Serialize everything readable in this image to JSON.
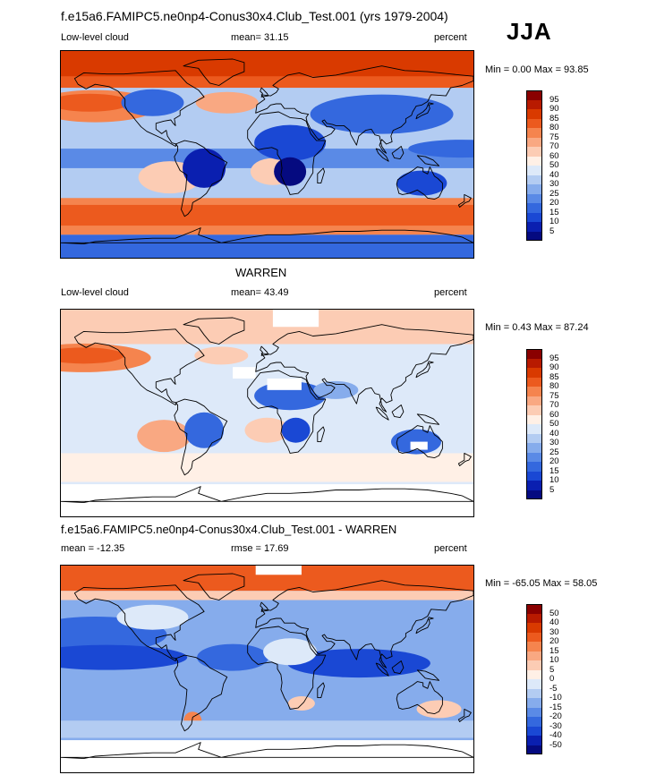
{
  "page": {
    "main_title": "f.e15a6.FAMIPC5.ne0np4-Conus30x4.Club_Test.001 (yrs 1979-2004)",
    "season": "JJA"
  },
  "panels": [
    {
      "id": "model",
      "title": "",
      "left_label": "Low-level cloud",
      "center_label": "mean=  31.15",
      "right_label": "percent",
      "minmax": "Min =    0.00 Max =  93.85"
    },
    {
      "id": "obs",
      "title": "WARREN",
      "left_label": "Low-level cloud",
      "center_label": "mean=  43.49",
      "right_label": "percent",
      "minmax": "Min =   0.43 Max =  87.24"
    },
    {
      "id": "diff",
      "title": "f.e15a6.FAMIPC5.ne0np4-Conus30x4.Club_Test.001 - WARREN",
      "left_label": "mean = -12.35",
      "center_label": "rmse =  17.69",
      "right_label": "percent",
      "minmax": "Min = -65.05 Max =  58.05"
    }
  ],
  "chart_data": [
    {
      "type": "heatmap",
      "title": "Low-level cloud",
      "units": "percent",
      "projection": "cylindrical equidistant, 0E centre",
      "stats": {
        "mean": 31.15,
        "min": 0.0,
        "max": 93.85
      },
      "colorbar_levels": [
        "95",
        "90",
        "85",
        "80",
        "75",
        "70",
        "60",
        "50",
        "40",
        "30",
        "25",
        "20",
        "15",
        "10",
        "5"
      ],
      "colorbar_colors": [
        "#8a0000",
        "#b81a00",
        "#d93a00",
        "#ec5a1e",
        "#f5844e",
        "#f9a882",
        "#fcccb4",
        "#fff0e6",
        "#dde9f9",
        "#b3ccf2",
        "#86acec",
        "#5a8ae6",
        "#3468de",
        "#1a48d4",
        "#0a1fb0",
        "#050a80"
      ]
    },
    {
      "type": "heatmap",
      "title": "WARREN",
      "units": "percent",
      "projection": "cylindrical equidistant, 0E centre",
      "stats": {
        "mean": 43.49,
        "min": 0.43,
        "max": 87.24
      },
      "colorbar_levels": [
        "95",
        "90",
        "85",
        "80",
        "75",
        "70",
        "60",
        "50",
        "40",
        "30",
        "25",
        "20",
        "15",
        "10",
        "5"
      ],
      "colorbar_colors": [
        "#8a0000",
        "#b81a00",
        "#d93a00",
        "#ec5a1e",
        "#f5844e",
        "#f9a882",
        "#fcccb4",
        "#fff0e6",
        "#dde9f9",
        "#b3ccf2",
        "#86acec",
        "#5a8ae6",
        "#3468de",
        "#1a48d4",
        "#0a1fb0",
        "#050a80"
      ]
    },
    {
      "type": "heatmap",
      "title": "f.e15a6.FAMIPC5.ne0np4-Conus30x4.Club_Test.001 - WARREN",
      "units": "percent",
      "projection": "cylindrical equidistant, 0E centre",
      "stats": {
        "mean": -12.35,
        "rmse": 17.69,
        "min": -65.05,
        "max": 58.05
      },
      "colorbar_levels": [
        "50",
        "40",
        "30",
        "20",
        "15",
        "10",
        "5",
        "0",
        "-5",
        "-10",
        "-15",
        "-20",
        "-30",
        "-40",
        "-50"
      ],
      "colorbar_colors": [
        "#8a0000",
        "#b81a00",
        "#d93a00",
        "#ec5a1e",
        "#f5844e",
        "#f9a882",
        "#fcccb4",
        "#fff0e6",
        "#dde9f9",
        "#b3ccf2",
        "#86acec",
        "#5a8ae6",
        "#3468de",
        "#1a48d4",
        "#0a1fb0",
        "#050a80"
      ]
    }
  ]
}
